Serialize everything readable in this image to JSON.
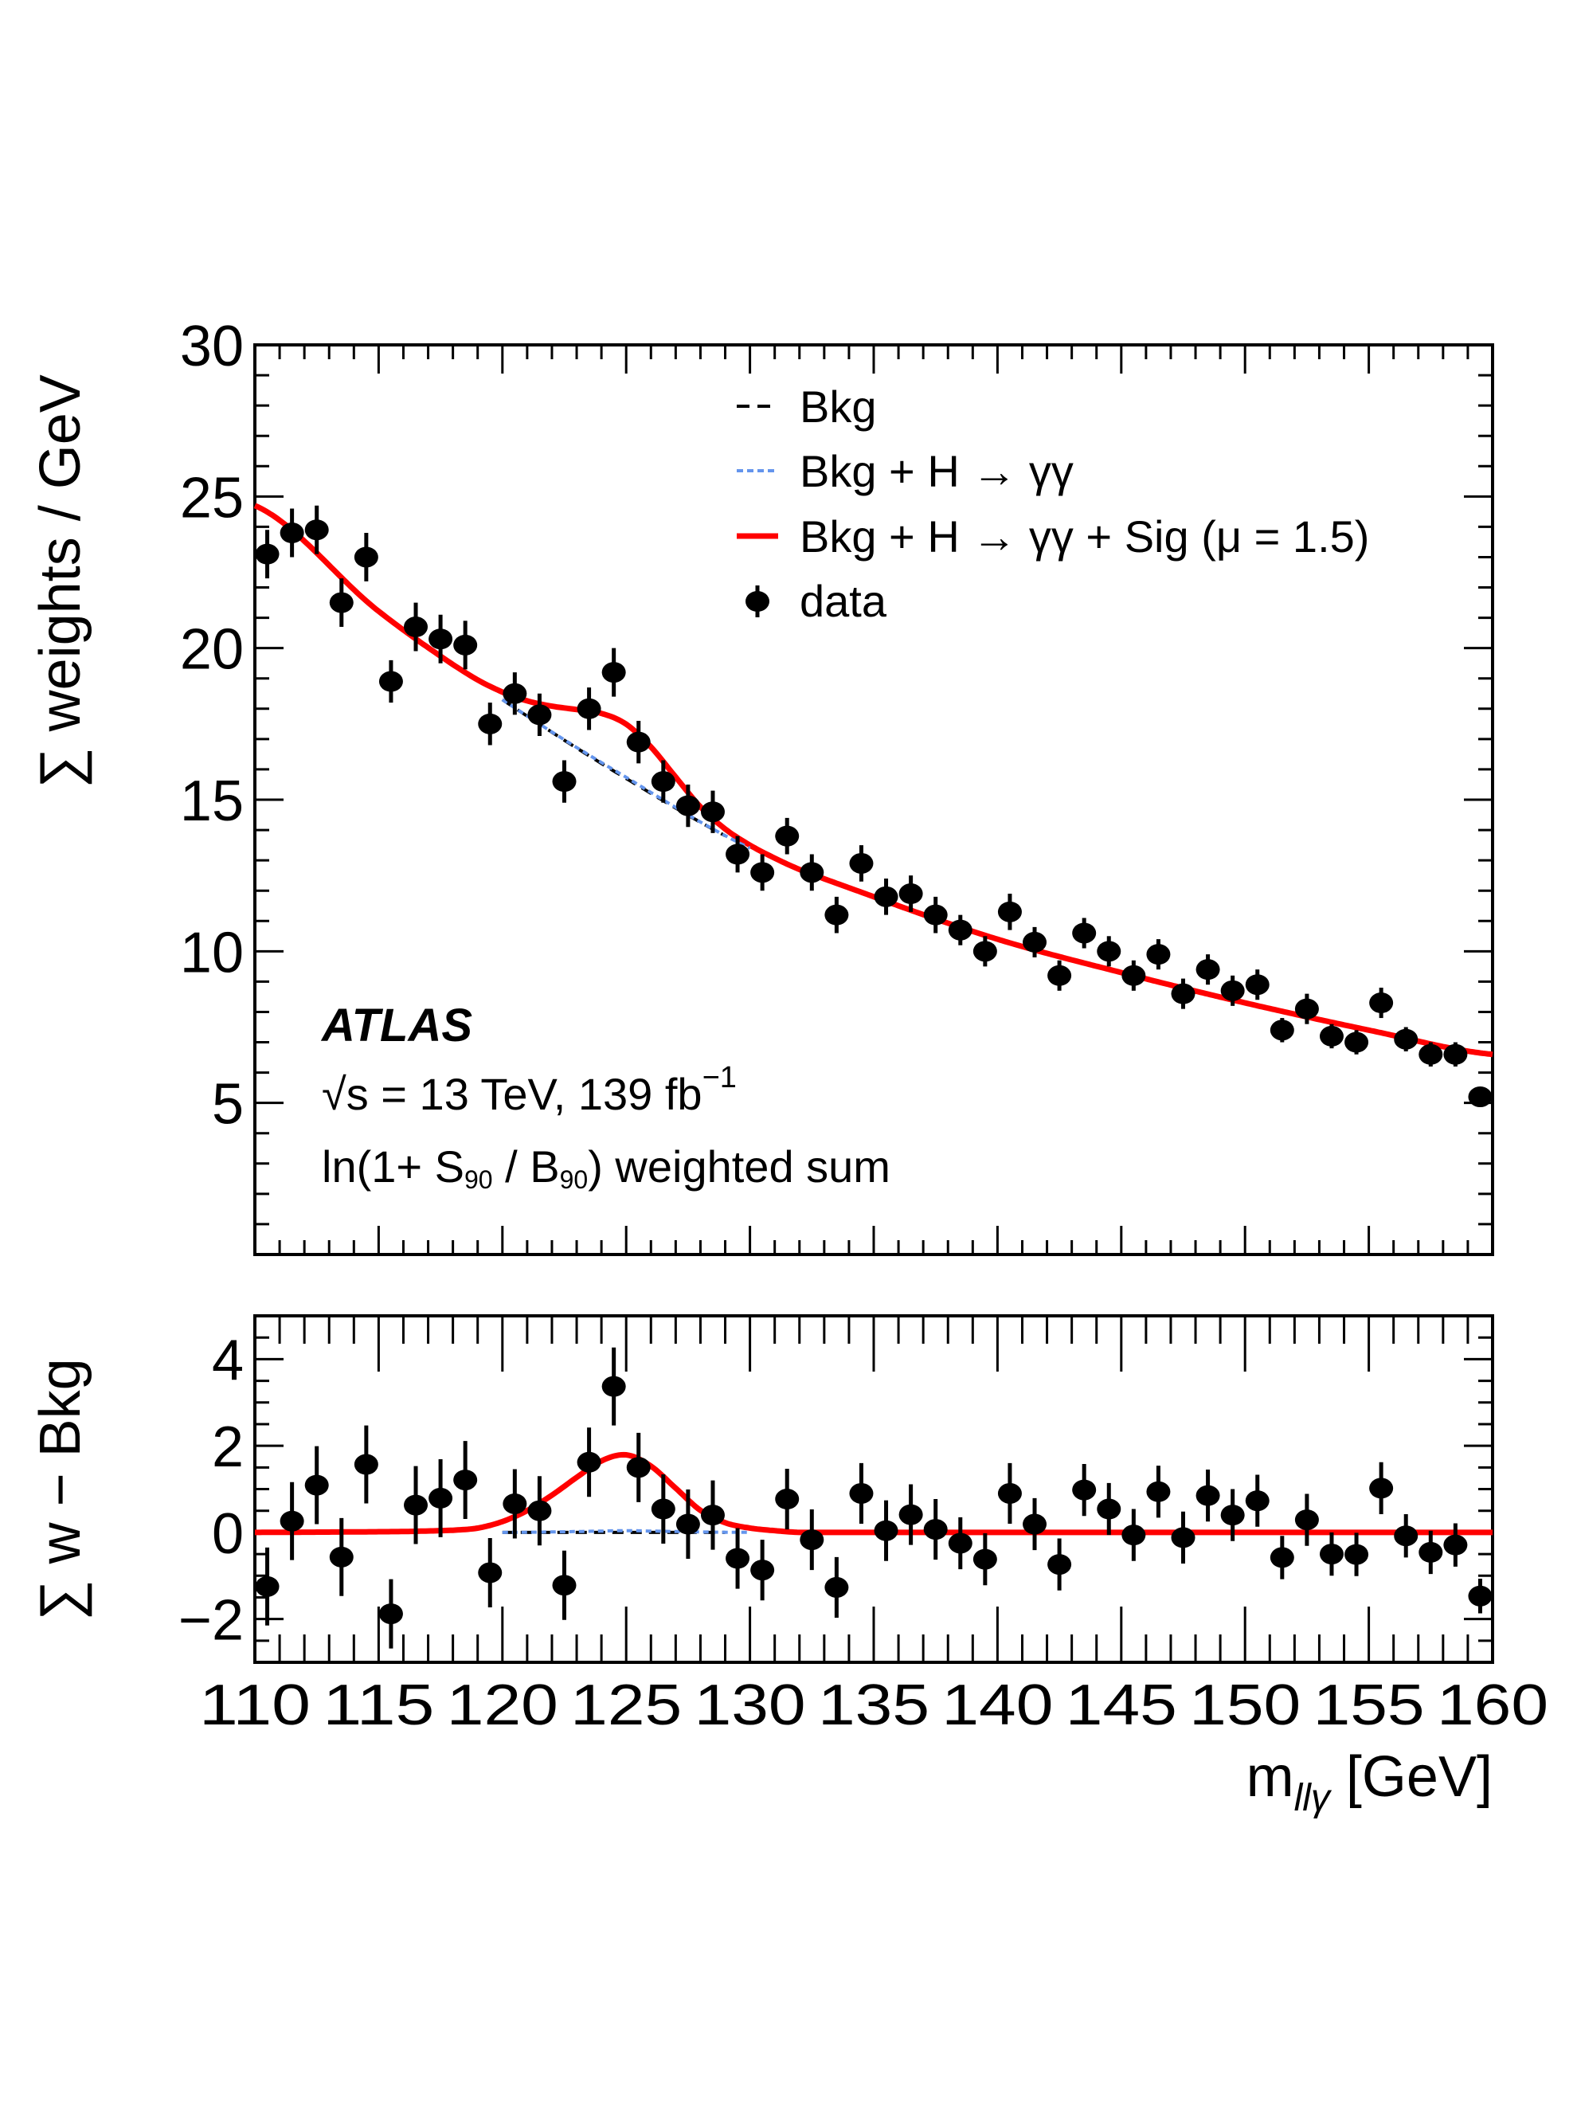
{
  "chart_data": [
    {
      "panel": "main",
      "type": "scatter",
      "ylabel": "∑ weights / GeV",
      "xlim": [
        110,
        160
      ],
      "ylim": [
        0,
        30
      ],
      "yticks": [
        "5",
        "10",
        "15",
        "20",
        "25",
        "30"
      ],
      "colors": {
        "bkg": "#000000",
        "bkg_hgg": "#6495ed",
        "total": "#ff0000",
        "data": "#000000"
      },
      "legend": {
        "placement": "top-right",
        "entries": [
          "Bkg",
          "Bkg + H → γγ",
          "Bkg + H → γγ + Sig (μ = 1.5)",
          "data"
        ]
      },
      "annotations": {
        "experiment": "ATLAS",
        "energy_lumi": "√s = 13 TeV, 139 fb",
        "lumi_exponent": "−1",
        "weighting_prefix": "ln(1+ S",
        "weighting_sub1": "90",
        "weighting_mid": " / B",
        "weighting_sub2": "90",
        "weighting_suffix": ") weighted sum"
      },
      "x": [
        110.5,
        111.5,
        112.5,
        113.5,
        114.5,
        115.5,
        116.5,
        117.5,
        118.5,
        119.5,
        120.5,
        121.5,
        122.5,
        123.5,
        124.5,
        125.5,
        126.5,
        127.5,
        128.5,
        129.5,
        130.5,
        131.5,
        132.5,
        133.5,
        134.5,
        135.5,
        136.5,
        137.5,
        138.5,
        139.5,
        140.5,
        141.5,
        142.5,
        143.5,
        144.5,
        145.5,
        146.5,
        147.5,
        148.5,
        149.5,
        150.5,
        151.5,
        152.5,
        153.5,
        154.5,
        155.5,
        156.5,
        157.5,
        158.5,
        159.5
      ],
      "data": [
        23.1,
        23.8,
        23.9,
        21.5,
        23.0,
        18.9,
        20.7,
        20.3,
        20.1,
        17.5,
        18.5,
        17.8,
        15.6,
        18.0,
        19.2,
        16.9,
        15.6,
        14.8,
        14.6,
        13.2,
        12.6,
        13.8,
        12.6,
        11.2,
        12.9,
        11.8,
        11.9,
        11.2,
        10.7,
        10.0,
        11.3,
        10.3,
        9.2,
        10.6,
        10.0,
        9.2,
        9.9,
        8.6,
        9.4,
        8.7,
        8.9,
        7.4,
        8.1,
        7.2,
        7.0,
        8.3,
        7.1,
        6.6,
        6.6,
        5.2
      ],
      "data_err": [
        0.8,
        0.8,
        0.8,
        0.8,
        0.8,
        0.7,
        0.8,
        0.8,
        0.8,
        0.7,
        0.7,
        0.7,
        0.7,
        0.7,
        0.8,
        0.7,
        0.7,
        0.7,
        0.7,
        0.6,
        0.6,
        0.6,
        0.6,
        0.6,
        0.6,
        0.6,
        0.6,
        0.6,
        0.5,
        0.5,
        0.6,
        0.5,
        0.5,
        0.5,
        0.5,
        0.5,
        0.5,
        0.5,
        0.5,
        0.5,
        0.5,
        0.4,
        0.5,
        0.4,
        0.4,
        0.5,
        0.4,
        0.4,
        0.4,
        0.3
      ],
      "bkg_curve": {
        "x": [
          110,
          115,
          120,
          125,
          130,
          135,
          140,
          145,
          150,
          155,
          160
        ],
        "y": [
          24.7,
          21.2,
          18.3,
          15.7,
          13.4,
          11.8,
          10.4,
          9.3,
          8.3,
          7.4,
          6.6
        ]
      }
    },
    {
      "panel": "residual",
      "type": "scatter",
      "xlabel": "m",
      "xlabel_sub": "llγ",
      "xlabel_unit": " [GeV]",
      "ylabel": "∑ w − Bkg",
      "xlim": [
        110,
        160
      ],
      "ylim": [
        -3,
        5
      ],
      "xticks": [
        "110",
        "115",
        "120",
        "125",
        "130",
        "135",
        "140",
        "145",
        "150",
        "155",
        "160"
      ],
      "yticks": [
        "−2",
        "0",
        "2",
        "4"
      ],
      "x": [
        110.5,
        111.5,
        112.5,
        113.5,
        114.5,
        115.5,
        116.5,
        117.5,
        118.5,
        119.5,
        120.5,
        121.5,
        122.5,
        123.5,
        124.5,
        125.5,
        126.5,
        127.5,
        128.5,
        129.5,
        130.5,
        131.5,
        132.5,
        133.5,
        134.5,
        135.5,
        136.5,
        137.5,
        138.5,
        139.5,
        140.5,
        141.5,
        142.5,
        143.5,
        144.5,
        145.5,
        146.5,
        147.5,
        148.5,
        149.5,
        150.5,
        151.5,
        152.5,
        153.5,
        154.5,
        155.5,
        156.5,
        157.5,
        158.5,
        159.5
      ],
      "data": [
        -1.25,
        0.26,
        1.09,
        -0.57,
        1.57,
        -1.88,
        0.63,
        0.79,
        1.21,
        -0.93,
        0.66,
        0.5,
        -1.22,
        1.62,
        3.37,
        1.5,
        0.54,
        0.19,
        0.4,
        -0.6,
        -0.87,
        0.77,
        -0.17,
        -1.27,
        0.9,
        0.04,
        0.41,
        0.07,
        -0.25,
        -0.62,
        0.9,
        0.19,
        -0.74,
        0.98,
        0.54,
        -0.06,
        0.94,
        -0.12,
        0.85,
        0.4,
        0.73,
        -0.58,
        0.29,
        -0.5,
        -0.51,
        1.02,
        -0.08,
        -0.46,
        -0.29,
        -1.47
      ],
      "data_err": [
        0.9,
        0.9,
        0.9,
        0.9,
        0.9,
        0.8,
        0.9,
        0.9,
        0.9,
        0.8,
        0.8,
        0.8,
        0.8,
        0.8,
        0.9,
        0.8,
        0.8,
        0.8,
        0.8,
        0.7,
        0.7,
        0.7,
        0.7,
        0.7,
        0.7,
        0.7,
        0.7,
        0.7,
        0.6,
        0.6,
        0.7,
        0.6,
        0.6,
        0.6,
        0.6,
        0.6,
        0.6,
        0.6,
        0.6,
        0.6,
        0.6,
        0.5,
        0.6,
        0.5,
        0.5,
        0.6,
        0.5,
        0.5,
        0.5,
        0.4
      ],
      "hgg_curve": {
        "x": [
          110,
          120,
          122,
          124,
          125,
          126,
          128,
          130,
          160
        ],
        "y": [
          0,
          0,
          0.01,
          0.03,
          0.04,
          0.03,
          0.01,
          0,
          0
        ]
      },
      "signal_curve": {
        "x": [
          110,
          116,
          118,
          119,
          120,
          121,
          122,
          123,
          124,
          125,
          126,
          127,
          128,
          129,
          130,
          131,
          132,
          140,
          160
        ],
        "y": [
          0,
          0.02,
          0.05,
          0.1,
          0.25,
          0.5,
          0.85,
          1.25,
          1.62,
          1.75,
          1.5,
          1.0,
          0.5,
          0.22,
          0.1,
          0.04,
          0,
          0,
          0
        ]
      }
    }
  ]
}
